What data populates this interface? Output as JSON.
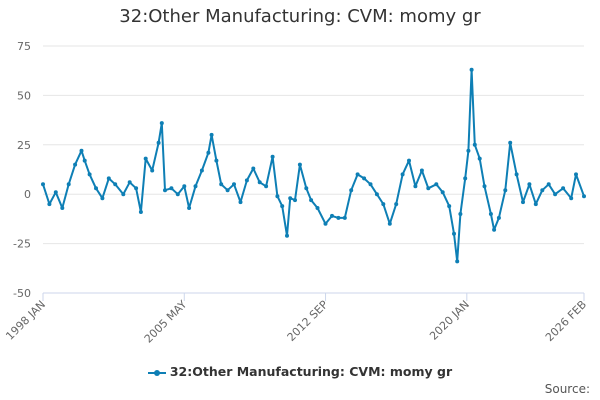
{
  "title": "32:Other Manufacturing: CVM: momy gr",
  "source_label": "Source:",
  "chart_data": {
    "type": "line",
    "title": "32:Other Manufacturing: CVM: momy gr",
    "ylim": [
      -50,
      75
    ],
    "yticks": [
      -50,
      -25,
      0,
      25,
      50,
      75
    ],
    "xlim": [
      "1998-01",
      "2026-02"
    ],
    "xticks": [
      {
        "label": "1998 JAN",
        "date": "1998-01"
      },
      {
        "label": "2005 MAY",
        "date": "2005-05"
      },
      {
        "label": "2012 SEP",
        "date": "2012-09"
      },
      {
        "label": "2020 JAN",
        "date": "2020-01"
      },
      {
        "label": "2026 FEB",
        "date": "2026-02"
      }
    ],
    "grid": true,
    "legend_position": "bottom",
    "color": "#0e7fb5",
    "series": [
      {
        "name": "32:Other Manufacturing: CVM: momy gr",
        "points": [
          [
            "1998-01",
            5
          ],
          [
            "1998-05",
            -5
          ],
          [
            "1998-09",
            1
          ],
          [
            "1999-01",
            -7
          ],
          [
            "1999-05",
            5
          ],
          [
            "1999-09",
            15
          ],
          [
            "2000-01",
            22
          ],
          [
            "2000-03",
            17
          ],
          [
            "2000-06",
            10
          ],
          [
            "2000-10",
            3
          ],
          [
            "2001-02",
            -2
          ],
          [
            "2001-06",
            8
          ],
          [
            "2001-10",
            5
          ],
          [
            "2002-03",
            0
          ],
          [
            "2002-07",
            6
          ],
          [
            "2002-11",
            3
          ],
          [
            "2003-02",
            -9
          ],
          [
            "2003-05",
            18
          ],
          [
            "2003-09",
            12
          ],
          [
            "2004-01",
            26
          ],
          [
            "2004-03",
            36
          ],
          [
            "2004-05",
            2
          ],
          [
            "2004-09",
            3
          ],
          [
            "2005-01",
            0
          ],
          [
            "2005-05",
            4
          ],
          [
            "2005-08",
            -7
          ],
          [
            "2005-12",
            4
          ],
          [
            "2006-04",
            12
          ],
          [
            "2006-08",
            21
          ],
          [
            "2006-10",
            30
          ],
          [
            "2007-01",
            17
          ],
          [
            "2007-04",
            5
          ],
          [
            "2007-08",
            2
          ],
          [
            "2007-12",
            5
          ],
          [
            "2008-04",
            -4
          ],
          [
            "2008-08",
            7
          ],
          [
            "2008-12",
            13
          ],
          [
            "2009-04",
            6
          ],
          [
            "2009-08",
            4
          ],
          [
            "2009-12",
            19
          ],
          [
            "2010-03",
            -1
          ],
          [
            "2010-06",
            -6
          ],
          [
            "2010-09",
            -21
          ],
          [
            "2010-11",
            -2
          ],
          [
            "2011-02",
            -3
          ],
          [
            "2011-05",
            15
          ],
          [
            "2011-09",
            3
          ],
          [
            "2011-12",
            -3
          ],
          [
            "2012-04",
            -7
          ],
          [
            "2012-09",
            -15
          ],
          [
            "2013-01",
            -11
          ],
          [
            "2013-05",
            -12
          ],
          [
            "2013-09",
            -12
          ],
          [
            "2014-01",
            2
          ],
          [
            "2014-05",
            10
          ],
          [
            "2014-09",
            8
          ],
          [
            "2015-01",
            5
          ],
          [
            "2015-05",
            0
          ],
          [
            "2015-09",
            -5
          ],
          [
            "2016-01",
            -15
          ],
          [
            "2016-05",
            -5
          ],
          [
            "2016-09",
            10
          ],
          [
            "2017-01",
            17
          ],
          [
            "2017-05",
            4
          ],
          [
            "2017-09",
            12
          ],
          [
            "2018-01",
            3
          ],
          [
            "2018-06",
            5
          ],
          [
            "2018-10",
            1
          ],
          [
            "2019-02",
            -6
          ],
          [
            "2019-05",
            -20
          ],
          [
            "2019-07",
            -34
          ],
          [
            "2019-09",
            -10
          ],
          [
            "2019-12",
            8
          ],
          [
            "2020-02",
            22
          ],
          [
            "2020-04",
            63
          ],
          [
            "2020-06",
            25
          ],
          [
            "2020-09",
            18
          ],
          [
            "2020-12",
            4
          ],
          [
            "2021-04",
            -10
          ],
          [
            "2021-06",
            -18
          ],
          [
            "2021-09",
            -12
          ],
          [
            "2022-01",
            2
          ],
          [
            "2022-04",
            26
          ],
          [
            "2022-08",
            10
          ],
          [
            "2022-12",
            -4
          ],
          [
            "2023-04",
            5
          ],
          [
            "2023-08",
            -5
          ],
          [
            "2023-12",
            2
          ],
          [
            "2024-04",
            5
          ],
          [
            "2024-08",
            0
          ],
          [
            "2025-01",
            3
          ],
          [
            "2025-06",
            -2
          ],
          [
            "2025-09",
            10
          ],
          [
            "2026-02",
            -1
          ]
        ]
      }
    ]
  }
}
